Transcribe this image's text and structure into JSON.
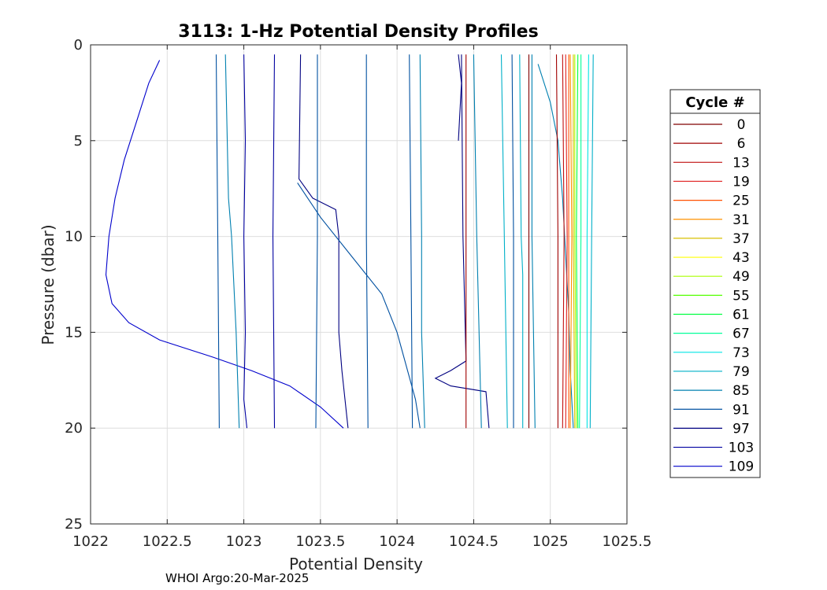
{
  "chart_data": {
    "type": "line",
    "title": "3113: 1-Hz Potential Density Profiles",
    "xlabel": "Potential Density",
    "ylabel": "Pressure (dbar)",
    "xlim": [
      1022,
      1025.5
    ],
    "ylim": [
      0,
      25
    ],
    "y_reversed": true,
    "xticks": [
      "1022",
      "1022.5",
      "1023",
      "1023.5",
      "1024",
      "1024.5",
      "1025",
      "1025.5"
    ],
    "yticks": [
      "0",
      "5",
      "10",
      "15",
      "20",
      "25"
    ],
    "grid": true,
    "legend": {
      "title": "Cycle #",
      "placement": "right-outside",
      "entries": [
        {
          "label": "0",
          "color": "#800000"
        },
        {
          "label": "6",
          "color": "#a00000"
        },
        {
          "label": "13",
          "color": "#c01010"
        },
        {
          "label": "19",
          "color": "#e02020"
        },
        {
          "label": "25",
          "color": "#ff5000"
        },
        {
          "label": "31",
          "color": "#ff9000"
        },
        {
          "label": "37",
          "color": "#d8c000"
        },
        {
          "label": "43",
          "color": "#ffff00"
        },
        {
          "label": "49",
          "color": "#aaff00"
        },
        {
          "label": "55",
          "color": "#55ff00"
        },
        {
          "label": "61",
          "color": "#00ff40"
        },
        {
          "label": "67",
          "color": "#00ff99"
        },
        {
          "label": "73",
          "color": "#00e5e5"
        },
        {
          "label": "79",
          "color": "#00b0c8"
        },
        {
          "label": "85",
          "color": "#0080b0"
        },
        {
          "label": "91",
          "color": "#0050a0"
        },
        {
          "label": "97",
          "color": "#000080"
        },
        {
          "label": "103",
          "color": "#0000a0"
        },
        {
          "label": "109",
          "color": "#0000cc"
        }
      ]
    },
    "series": [
      {
        "color": "#0000cc",
        "points": [
          [
            1022.45,
            0.8
          ],
          [
            1022.38,
            2.0
          ],
          [
            1022.3,
            4.0
          ],
          [
            1022.22,
            6.0
          ],
          [
            1022.16,
            8.0
          ],
          [
            1022.12,
            10.0
          ],
          [
            1022.1,
            12.0
          ],
          [
            1022.14,
            13.5
          ],
          [
            1022.25,
            14.5
          ],
          [
            1022.45,
            15.4
          ],
          [
            1022.8,
            16.3
          ],
          [
            1023.05,
            17.0
          ],
          [
            1023.3,
            17.8
          ],
          [
            1023.5,
            18.9
          ],
          [
            1023.65,
            20.0
          ]
        ]
      },
      {
        "color": "#0000a0",
        "points": [
          [
            1023.0,
            0.5
          ],
          [
            1023.01,
            5.0
          ],
          [
            1023.0,
            10.0
          ],
          [
            1023.01,
            15.0
          ],
          [
            1023.0,
            18.5
          ],
          [
            1023.02,
            20.0
          ]
        ]
      },
      {
        "color": "#0000a0",
        "points": [
          [
            1023.2,
            0.5
          ],
          [
            1023.19,
            10.0
          ],
          [
            1023.2,
            20.0
          ]
        ]
      },
      {
        "color": "#000080",
        "points": [
          [
            1023.37,
            0.5
          ],
          [
            1023.36,
            7.0
          ],
          [
            1023.45,
            8.0
          ],
          [
            1023.6,
            8.6
          ],
          [
            1023.62,
            10.0
          ],
          [
            1023.62,
            15.0
          ],
          [
            1023.64,
            17.0
          ],
          [
            1023.68,
            20.0
          ]
        ]
      },
      {
        "color": "#000080",
        "points": [
          [
            1024.4,
            0.5
          ],
          [
            1024.42,
            2.0
          ],
          [
            1024.4,
            5.0
          ]
        ]
      },
      {
        "color": "#000080",
        "points": [
          [
            1024.42,
            0.5
          ],
          [
            1024.43,
            10.0
          ],
          [
            1024.45,
            16.5
          ],
          [
            1024.35,
            17.0
          ],
          [
            1024.25,
            17.4
          ],
          [
            1024.35,
            17.8
          ],
          [
            1024.58,
            18.1
          ],
          [
            1024.6,
            20.0
          ]
        ]
      },
      {
        "color": "#0050a0",
        "points": [
          [
            1022.82,
            0.5
          ],
          [
            1022.83,
            10.0
          ],
          [
            1022.84,
            20.0
          ]
        ]
      },
      {
        "color": "#0050a0",
        "points": [
          [
            1023.48,
            0.5
          ],
          [
            1023.48,
            10.0
          ],
          [
            1023.47,
            20.0
          ]
        ]
      },
      {
        "color": "#0050a0",
        "points": [
          [
            1023.8,
            0.5
          ],
          [
            1023.8,
            10.0
          ],
          [
            1023.81,
            20.0
          ]
        ]
      },
      {
        "color": "#0050a0",
        "points": [
          [
            1024.08,
            0.5
          ],
          [
            1024.09,
            10.0
          ],
          [
            1024.1,
            20.0
          ]
        ]
      },
      {
        "color": "#0050a0",
        "points": [
          [
            1024.75,
            0.5
          ],
          [
            1024.76,
            10.0
          ],
          [
            1024.76,
            20.0
          ]
        ]
      },
      {
        "color": "#0050a0",
        "points": [
          [
            1023.35,
            7.2
          ],
          [
            1023.5,
            9.0
          ],
          [
            1023.7,
            11.0
          ],
          [
            1023.9,
            13.0
          ],
          [
            1024.0,
            15.0
          ],
          [
            1024.12,
            18.5
          ],
          [
            1024.15,
            20.0
          ]
        ]
      },
      {
        "color": "#0080b0",
        "points": [
          [
            1022.88,
            0.5
          ],
          [
            1022.9,
            8.0
          ],
          [
            1022.92,
            10.0
          ],
          [
            1022.95,
            15.0
          ],
          [
            1022.97,
            20.0
          ]
        ]
      },
      {
        "color": "#0080b0",
        "points": [
          [
            1024.15,
            0.5
          ],
          [
            1024.16,
            10.0
          ],
          [
            1024.16,
            15.0
          ],
          [
            1024.18,
            20.0
          ]
        ]
      },
      {
        "color": "#0080b0",
        "points": [
          [
            1024.5,
            0.5
          ],
          [
            1024.52,
            10.0
          ],
          [
            1024.55,
            20.0
          ]
        ]
      },
      {
        "color": "#0080b0",
        "points": [
          [
            1024.88,
            0.5
          ],
          [
            1024.88,
            10.0
          ],
          [
            1024.9,
            20.0
          ]
        ]
      },
      {
        "color": "#0080b0",
        "points": [
          [
            1024.92,
            1.0
          ],
          [
            1025.0,
            3.0
          ],
          [
            1025.05,
            5.0
          ],
          [
            1025.08,
            8.0
          ],
          [
            1025.1,
            11.0
          ],
          [
            1025.12,
            14.0
          ],
          [
            1025.13,
            17.0
          ],
          [
            1025.15,
            20.0
          ]
        ]
      },
      {
        "color": "#00b0c8",
        "points": [
          [
            1024.68,
            0.5
          ],
          [
            1024.7,
            10.0
          ],
          [
            1024.72,
            20.0
          ]
        ]
      },
      {
        "color": "#00b0c8",
        "points": [
          [
            1024.8,
            0.5
          ],
          [
            1024.81,
            10.0
          ],
          [
            1024.82,
            12.0
          ],
          [
            1024.82,
            20.0
          ]
        ]
      },
      {
        "color": "#00b0c8",
        "points": [
          [
            1025.28,
            0.5
          ],
          [
            1025.27,
            10.0
          ],
          [
            1025.26,
            20.0
          ]
        ]
      },
      {
        "color": "#00e5e5",
        "points": [
          [
            1025.25,
            0.5
          ],
          [
            1025.24,
            10.0
          ],
          [
            1025.24,
            20.0
          ]
        ]
      },
      {
        "color": "#00ff99",
        "points": [
          [
            1025.2,
            0.5
          ],
          [
            1025.2,
            10.0
          ],
          [
            1025.19,
            20.0
          ]
        ]
      },
      {
        "color": "#00ff40",
        "points": [
          [
            1025.18,
            0.5
          ],
          [
            1025.17,
            10.0
          ],
          [
            1025.18,
            20.0
          ]
        ]
      },
      {
        "color": "#aaff00",
        "points": [
          [
            1025.16,
            0.5
          ],
          [
            1025.16,
            10.0
          ],
          [
            1025.17,
            20.0
          ]
        ]
      },
      {
        "color": "#d8c000",
        "points": [
          [
            1025.15,
            0.5
          ],
          [
            1025.15,
            10.0
          ],
          [
            1025.16,
            20.0
          ]
        ]
      },
      {
        "color": "#ff9000",
        "points": [
          [
            1025.13,
            0.5
          ],
          [
            1025.14,
            10.0
          ],
          [
            1025.13,
            20.0
          ]
        ]
      },
      {
        "color": "#ff5000",
        "points": [
          [
            1025.12,
            0.5
          ],
          [
            1025.12,
            10.0
          ],
          [
            1025.12,
            20.0
          ]
        ]
      },
      {
        "color": "#e02020",
        "points": [
          [
            1025.1,
            0.5
          ],
          [
            1025.11,
            10.0
          ],
          [
            1025.1,
            20.0
          ]
        ]
      },
      {
        "color": "#c01010",
        "points": [
          [
            1025.08,
            0.5
          ],
          [
            1025.09,
            10.0
          ],
          [
            1025.08,
            20.0
          ]
        ]
      },
      {
        "color": "#a00000",
        "points": [
          [
            1025.04,
            0.5
          ],
          [
            1025.05,
            10.0
          ],
          [
            1025.05,
            20.0
          ]
        ]
      },
      {
        "color": "#a00000",
        "points": [
          [
            1024.45,
            0.5
          ],
          [
            1024.45,
            10.0
          ],
          [
            1024.45,
            20.0
          ]
        ]
      },
      {
        "color": "#800000",
        "points": [
          [
            1024.86,
            0.5
          ],
          [
            1024.86,
            10.0
          ],
          [
            1024.86,
            20.0
          ]
        ]
      }
    ]
  },
  "footer": "WHOI Argo:20-Mar-2025"
}
